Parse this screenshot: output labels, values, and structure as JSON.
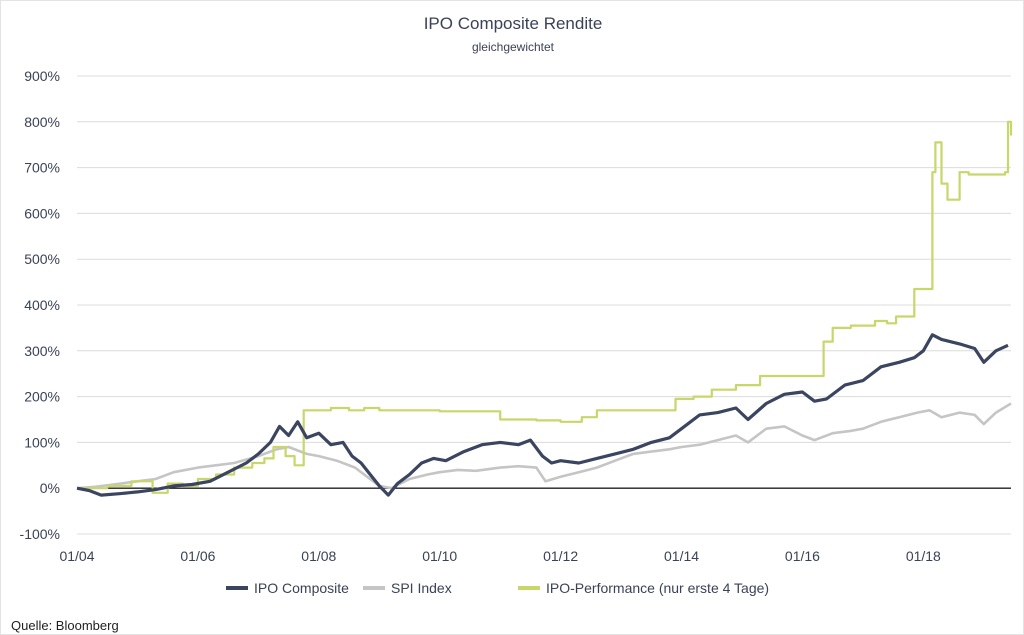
{
  "chart_data": {
    "type": "line",
    "title": "IPO Composite Rendite",
    "subtitle": "gleichgewichtet",
    "xlabel": "",
    "ylabel": "",
    "ylim": [
      -100,
      900
    ],
    "xlim": [
      2004.0,
      2019.45
    ],
    "y_ticks": [
      {
        "value": -100,
        "label": "-100%"
      },
      {
        "value": 0,
        "label": "0%"
      },
      {
        "value": 100,
        "label": "100%"
      },
      {
        "value": 200,
        "label": "200%"
      },
      {
        "value": 300,
        "label": "300%"
      },
      {
        "value": 400,
        "label": "400%"
      },
      {
        "value": 500,
        "label": "500%"
      },
      {
        "value": 600,
        "label": "600%"
      },
      {
        "value": 700,
        "label": "700%"
      },
      {
        "value": 800,
        "label": "800%"
      },
      {
        "value": 900,
        "label": "900%"
      }
    ],
    "x_ticks": [
      {
        "value": 2004,
        "label": "01/04"
      },
      {
        "value": 2006,
        "label": "01/06"
      },
      {
        "value": 2008,
        "label": "01/08"
      },
      {
        "value": 2010,
        "label": "01/10"
      },
      {
        "value": 2012,
        "label": "01/12"
      },
      {
        "value": 2014,
        "label": "01/14"
      },
      {
        "value": 2016,
        "label": "01/16"
      },
      {
        "value": 2018,
        "label": "01/18"
      }
    ],
    "legend_position": "bottom",
    "series": [
      {
        "name": "IPO Composite",
        "color": "#3b4560",
        "style": "line",
        "points": [
          [
            2004.0,
            0
          ],
          [
            2004.2,
            -5
          ],
          [
            2004.4,
            -15
          ],
          [
            2004.7,
            -12
          ],
          [
            2005.0,
            -8
          ],
          [
            2005.3,
            -3
          ],
          [
            2005.6,
            5
          ],
          [
            2005.9,
            8
          ],
          [
            2006.2,
            15
          ],
          [
            2006.5,
            35
          ],
          [
            2006.8,
            55
          ],
          [
            2007.0,
            75
          ],
          [
            2007.2,
            100
          ],
          [
            2007.35,
            135
          ],
          [
            2007.5,
            115
          ],
          [
            2007.65,
            145
          ],
          [
            2007.8,
            110
          ],
          [
            2008.0,
            120
          ],
          [
            2008.2,
            95
          ],
          [
            2008.4,
            100
          ],
          [
            2008.55,
            70
          ],
          [
            2008.7,
            55
          ],
          [
            2008.85,
            30
          ],
          [
            2009.0,
            5
          ],
          [
            2009.15,
            -15
          ],
          [
            2009.3,
            10
          ],
          [
            2009.5,
            30
          ],
          [
            2009.7,
            55
          ],
          [
            2009.9,
            65
          ],
          [
            2010.1,
            60
          ],
          [
            2010.4,
            80
          ],
          [
            2010.7,
            95
          ],
          [
            2011.0,
            100
          ],
          [
            2011.3,
            95
          ],
          [
            2011.5,
            105
          ],
          [
            2011.7,
            70
          ],
          [
            2011.85,
            55
          ],
          [
            2012.0,
            60
          ],
          [
            2012.3,
            55
          ],
          [
            2012.6,
            65
          ],
          [
            2012.9,
            75
          ],
          [
            2013.2,
            85
          ],
          [
            2013.5,
            100
          ],
          [
            2013.8,
            110
          ],
          [
            2014.0,
            130
          ],
          [
            2014.3,
            160
          ],
          [
            2014.6,
            165
          ],
          [
            2014.9,
            175
          ],
          [
            2015.1,
            150
          ],
          [
            2015.4,
            185
          ],
          [
            2015.7,
            205
          ],
          [
            2016.0,
            210
          ],
          [
            2016.2,
            190
          ],
          [
            2016.4,
            195
          ],
          [
            2016.7,
            225
          ],
          [
            2017.0,
            235
          ],
          [
            2017.3,
            265
          ],
          [
            2017.6,
            275
          ],
          [
            2017.85,
            285
          ],
          [
            2018.0,
            300
          ],
          [
            2018.15,
            335
          ],
          [
            2018.3,
            325
          ],
          [
            2018.6,
            315
          ],
          [
            2018.85,
            305
          ],
          [
            2019.0,
            275
          ],
          [
            2019.2,
            300
          ],
          [
            2019.4,
            312
          ]
        ]
      },
      {
        "name": "SPI Index",
        "color": "#c5c5c5",
        "style": "line",
        "points": [
          [
            2004.0,
            0
          ],
          [
            2004.3,
            3
          ],
          [
            2004.6,
            8
          ],
          [
            2005.0,
            15
          ],
          [
            2005.3,
            20
          ],
          [
            2005.6,
            35
          ],
          [
            2006.0,
            45
          ],
          [
            2006.3,
            50
          ],
          [
            2006.6,
            55
          ],
          [
            2007.0,
            70
          ],
          [
            2007.3,
            85
          ],
          [
            2007.5,
            90
          ],
          [
            2007.8,
            75
          ],
          [
            2008.0,
            70
          ],
          [
            2008.3,
            60
          ],
          [
            2008.6,
            45
          ],
          [
            2008.8,
            25
          ],
          [
            2009.0,
            5
          ],
          [
            2009.2,
            0
          ],
          [
            2009.5,
            20
          ],
          [
            2009.8,
            30
          ],
          [
            2010.0,
            35
          ],
          [
            2010.3,
            40
          ],
          [
            2010.6,
            38
          ],
          [
            2011.0,
            45
          ],
          [
            2011.3,
            48
          ],
          [
            2011.6,
            45
          ],
          [
            2011.75,
            15
          ],
          [
            2012.0,
            25
          ],
          [
            2012.3,
            35
          ],
          [
            2012.6,
            45
          ],
          [
            2012.9,
            60
          ],
          [
            2013.2,
            75
          ],
          [
            2013.5,
            80
          ],
          [
            2013.8,
            85
          ],
          [
            2014.0,
            90
          ],
          [
            2014.3,
            95
          ],
          [
            2014.6,
            105
          ],
          [
            2014.9,
            115
          ],
          [
            2015.1,
            100
          ],
          [
            2015.4,
            130
          ],
          [
            2015.7,
            135
          ],
          [
            2016.0,
            115
          ],
          [
            2016.2,
            105
          ],
          [
            2016.5,
            120
          ],
          [
            2016.8,
            125
          ],
          [
            2017.0,
            130
          ],
          [
            2017.3,
            145
          ],
          [
            2017.6,
            155
          ],
          [
            2017.9,
            165
          ],
          [
            2018.1,
            170
          ],
          [
            2018.3,
            155
          ],
          [
            2018.6,
            165
          ],
          [
            2018.85,
            160
          ],
          [
            2019.0,
            140
          ],
          [
            2019.2,
            165
          ],
          [
            2019.45,
            185
          ]
        ]
      },
      {
        "name": "IPO-Performance (nur erste 4 Tage)",
        "color": "#c8d66a",
        "style": "step",
        "points": [
          [
            2004.0,
            0
          ],
          [
            2004.5,
            5
          ],
          [
            2004.9,
            15
          ],
          [
            2005.25,
            -10
          ],
          [
            2005.5,
            10
          ],
          [
            2005.75,
            5
          ],
          [
            2006.0,
            20
          ],
          [
            2006.3,
            30
          ],
          [
            2006.6,
            45
          ],
          [
            2006.9,
            55
          ],
          [
            2007.1,
            65
          ],
          [
            2007.25,
            90
          ],
          [
            2007.45,
            70
          ],
          [
            2007.6,
            50
          ],
          [
            2007.75,
            170
          ],
          [
            2008.2,
            175
          ],
          [
            2008.5,
            170
          ],
          [
            2008.75,
            175
          ],
          [
            2009.0,
            170
          ],
          [
            2010.0,
            168
          ],
          [
            2011.0,
            150
          ],
          [
            2011.6,
            148
          ],
          [
            2012.0,
            145
          ],
          [
            2012.35,
            155
          ],
          [
            2012.6,
            170
          ],
          [
            2013.0,
            170
          ],
          [
            2013.9,
            195
          ],
          [
            2014.2,
            200
          ],
          [
            2014.5,
            215
          ],
          [
            2014.9,
            225
          ],
          [
            2015.3,
            245
          ],
          [
            2015.7,
            245
          ],
          [
            2016.0,
            245
          ],
          [
            2016.35,
            320
          ],
          [
            2016.5,
            350
          ],
          [
            2016.8,
            355
          ],
          [
            2017.0,
            355
          ],
          [
            2017.2,
            365
          ],
          [
            2017.4,
            360
          ],
          [
            2017.55,
            375
          ],
          [
            2017.85,
            435
          ],
          [
            2018.15,
            690
          ],
          [
            2018.2,
            755
          ],
          [
            2018.3,
            665
          ],
          [
            2018.4,
            630
          ],
          [
            2018.6,
            690
          ],
          [
            2018.75,
            685
          ],
          [
            2019.0,
            685
          ],
          [
            2019.35,
            690
          ],
          [
            2019.4,
            800
          ],
          [
            2019.45,
            770
          ]
        ]
      }
    ]
  },
  "source": "Quelle: Bloomberg"
}
